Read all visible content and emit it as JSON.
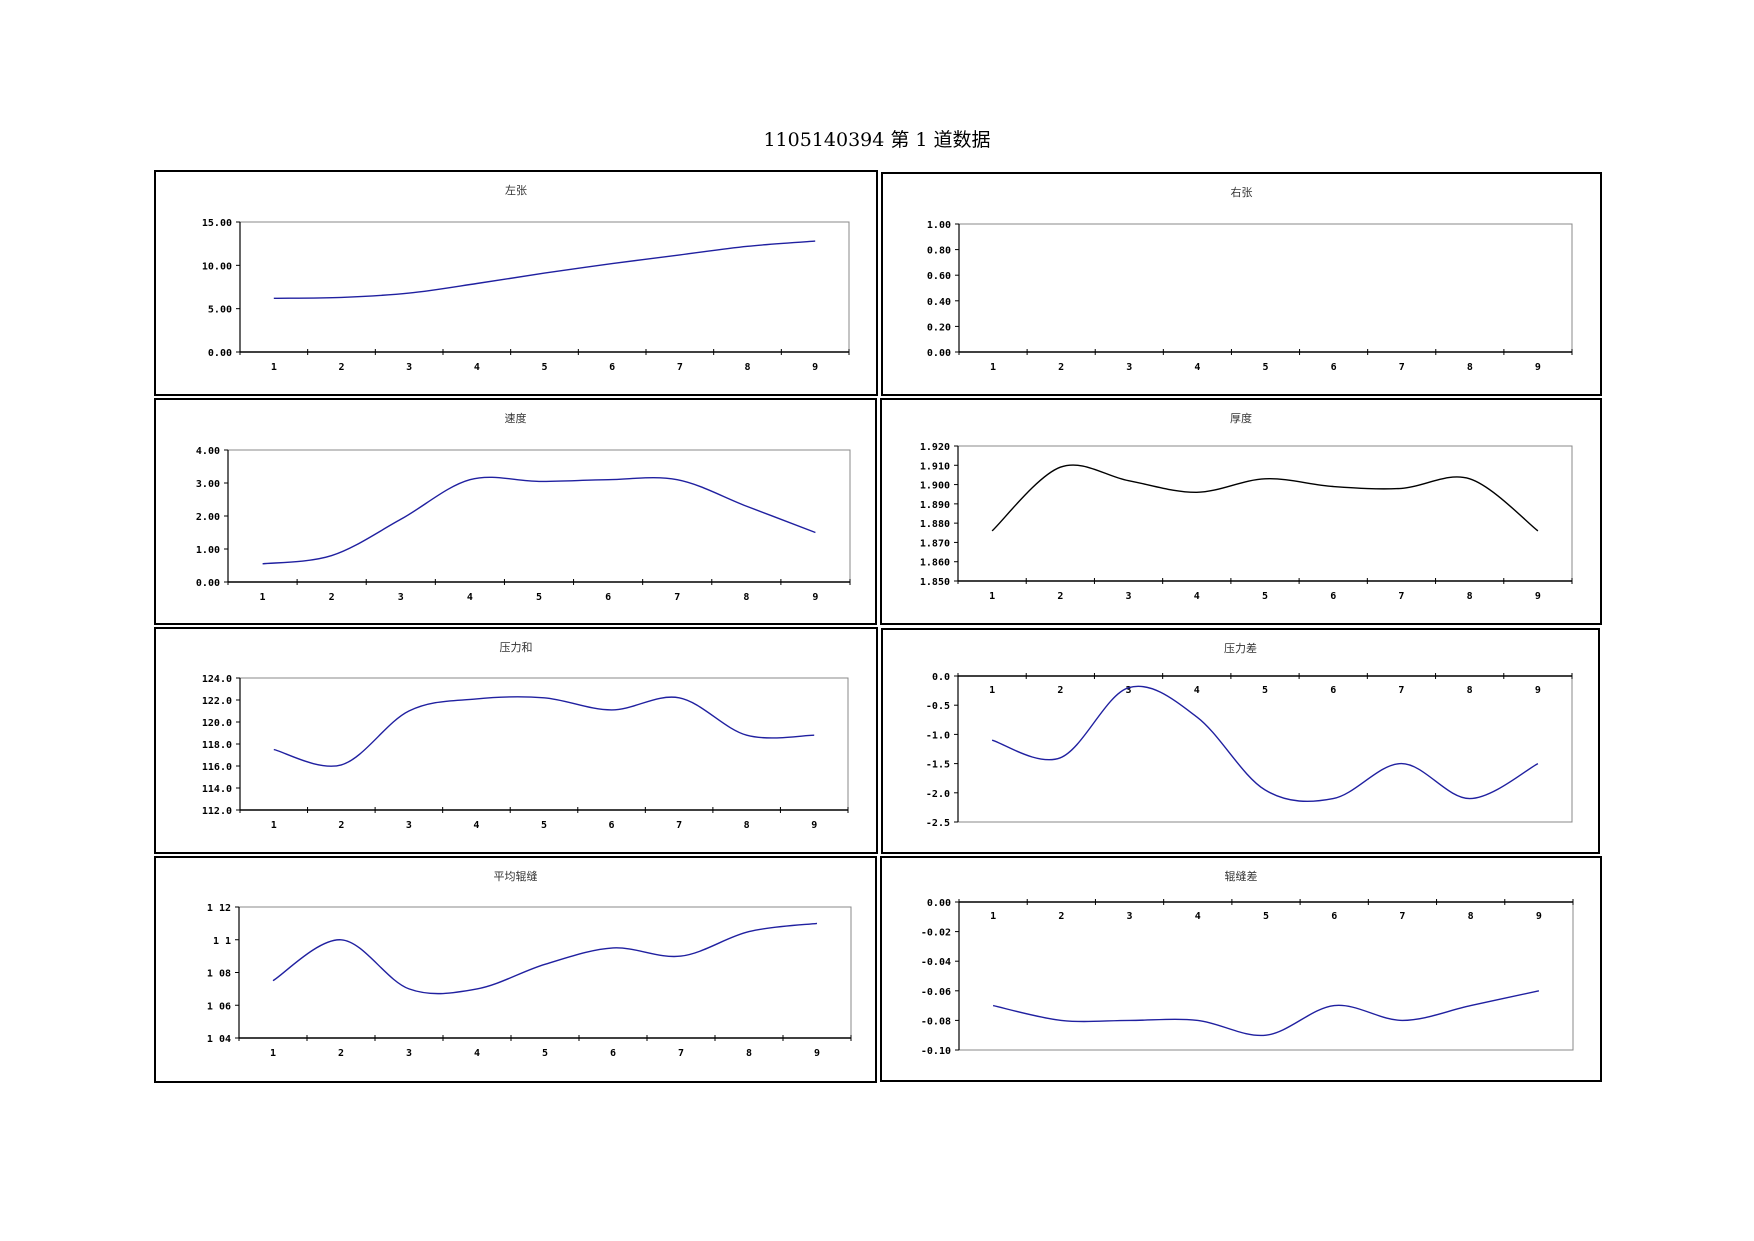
{
  "page": {
    "title": "1105140394 第 1 道数据"
  },
  "chart_data": [
    {
      "type": "line",
      "title": "左张",
      "categories": [
        "1",
        "2",
        "3",
        "4",
        "5",
        "6",
        "7",
        "8",
        "9"
      ],
      "series": [
        {
          "values": [
            6.2,
            6.3,
            6.8,
            7.9,
            9.1,
            10.2,
            11.2,
            12.2,
            12.8
          ]
        }
      ],
      "ylim": [
        0,
        15
      ],
      "yticks": [
        "0.00",
        "5.00",
        "10.00",
        "15.00"
      ],
      "xtick_labels": [
        "1",
        "2",
        "3",
        "4",
        "5",
        "6",
        "7",
        "8",
        "9"
      ],
      "line_color": "#2020a0",
      "grid": false
    },
    {
      "type": "line",
      "title": "右张",
      "categories": [
        "1",
        "2",
        "3",
        "4",
        "5",
        "6",
        "7",
        "8",
        "9"
      ],
      "series": [
        {
          "values": [
            0,
            0,
            0,
            0,
            0,
            0,
            0,
            0,
            0
          ]
        }
      ],
      "ylim": [
        0,
        1
      ],
      "yticks": [
        "0.00",
        "0.20",
        "0.40",
        "0.60",
        "0.80",
        "1.00"
      ],
      "xtick_labels": [
        "1",
        "2",
        "3",
        "4",
        "5",
        "6",
        "7",
        "8",
        "9"
      ],
      "line_color": "#2020a0",
      "grid": false
    },
    {
      "type": "line",
      "title": "速度",
      "categories": [
        "1",
        "2",
        "3",
        "4",
        "5",
        "6",
        "7",
        "8",
        "9"
      ],
      "series": [
        {
          "values": [
            0.55,
            0.8,
            1.9,
            3.1,
            3.05,
            3.1,
            3.1,
            2.3,
            1.5
          ]
        }
      ],
      "ylim": [
        0,
        4
      ],
      "yticks": [
        "0.00",
        "1.00",
        "2.00",
        "3.00",
        "4.00"
      ],
      "xtick_labels": [
        "1",
        "2",
        "3",
        "4",
        "5",
        "6",
        "7",
        "8",
        "9"
      ],
      "line_color": "#2020a0",
      "grid": false
    },
    {
      "type": "line",
      "title": "厚度",
      "categories": [
        "1",
        "2",
        "3",
        "4",
        "5",
        "6",
        "7",
        "8",
        "9"
      ],
      "series": [
        {
          "values": [
            1.876,
            1.909,
            1.902,
            1.896,
            1.903,
            1.899,
            1.898,
            1.903,
            1.876
          ]
        }
      ],
      "ylim": [
        1.85,
        1.92
      ],
      "yticks": [
        "1.850",
        "1.860",
        "1.870",
        "1.880",
        "1.890",
        "1.900",
        "1.910",
        "1.920"
      ],
      "xtick_labels": [
        "1",
        "2",
        "3",
        "4",
        "5",
        "6",
        "7",
        "8",
        "9"
      ],
      "line_color": "#000000",
      "grid": false
    },
    {
      "type": "line",
      "title": "压力和",
      "categories": [
        "1",
        "2",
        "3",
        "4",
        "5",
        "6",
        "7",
        "8",
        "9"
      ],
      "series": [
        {
          "values": [
            117.5,
            116.1,
            121.0,
            122.1,
            122.2,
            121.1,
            122.2,
            118.8,
            118.8
          ]
        }
      ],
      "ylim": [
        112,
        124
      ],
      "yticks": [
        "112.0",
        "114.0",
        "116.0",
        "118.0",
        "120.0",
        "122.0",
        "124.0"
      ],
      "xtick_labels": [
        "1",
        "2",
        "3",
        "4",
        "5",
        "6",
        "7",
        "8",
        "9"
      ],
      "line_color": "#2020a0",
      "grid": false
    },
    {
      "type": "line",
      "title": "压力差",
      "categories": [
        "1",
        "2",
        "3",
        "4",
        "5",
        "6",
        "7",
        "8",
        "9"
      ],
      "series": [
        {
          "values": [
            -1.1,
            -1.4,
            -0.2,
            -0.7,
            -1.95,
            -2.1,
            -1.5,
            -2.1,
            -1.5
          ]
        }
      ],
      "ylim": [
        -2.5,
        0
      ],
      "yticks": [
        "-2.5",
        "-2.0",
        "-1.5",
        "-1.0",
        "-0.5",
        "0.0"
      ],
      "xtick_labels": [
        "1",
        "2",
        "3",
        "4",
        "5",
        "6",
        "7",
        "8",
        "9"
      ],
      "line_color": "#2020a0",
      "grid": false
    },
    {
      "type": "line",
      "title": "平均辊缝",
      "categories": [
        "1",
        "2",
        "3",
        "4",
        "5",
        "6",
        "7",
        "8",
        "9"
      ],
      "series": [
        {
          "values": [
            1.075,
            1.1,
            1.07,
            1.07,
            1.085,
            1.095,
            1.09,
            1.105,
            1.11
          ]
        }
      ],
      "ylim": [
        1.04,
        1.12
      ],
      "yticks": [
        "1 04",
        "1 06",
        "1 08",
        "1 1",
        "1 12"
      ],
      "xtick_labels": [
        "1",
        "2",
        "3",
        "4",
        "5",
        "6",
        "7",
        "8",
        "9"
      ],
      "line_color": "#2020a0",
      "grid": false
    },
    {
      "type": "line",
      "title": "辊缝差",
      "categories": [
        "1",
        "2",
        "3",
        "4",
        "5",
        "6",
        "7",
        "8",
        "9"
      ],
      "series": [
        {
          "values": [
            -0.07,
            -0.08,
            -0.08,
            -0.08,
            -0.09,
            -0.07,
            -0.08,
            -0.07,
            -0.06
          ]
        }
      ],
      "ylim": [
        -0.1,
        0
      ],
      "yticks": [
        "-0.10",
        "-0.08",
        "-0.06",
        "-0.04",
        "-0.02",
        "0.00"
      ],
      "xtick_labels": [
        "1",
        "2",
        "3",
        "4",
        "5",
        "6",
        "7",
        "8",
        "9"
      ],
      "line_color": "#2020a0",
      "grid": false
    }
  ]
}
